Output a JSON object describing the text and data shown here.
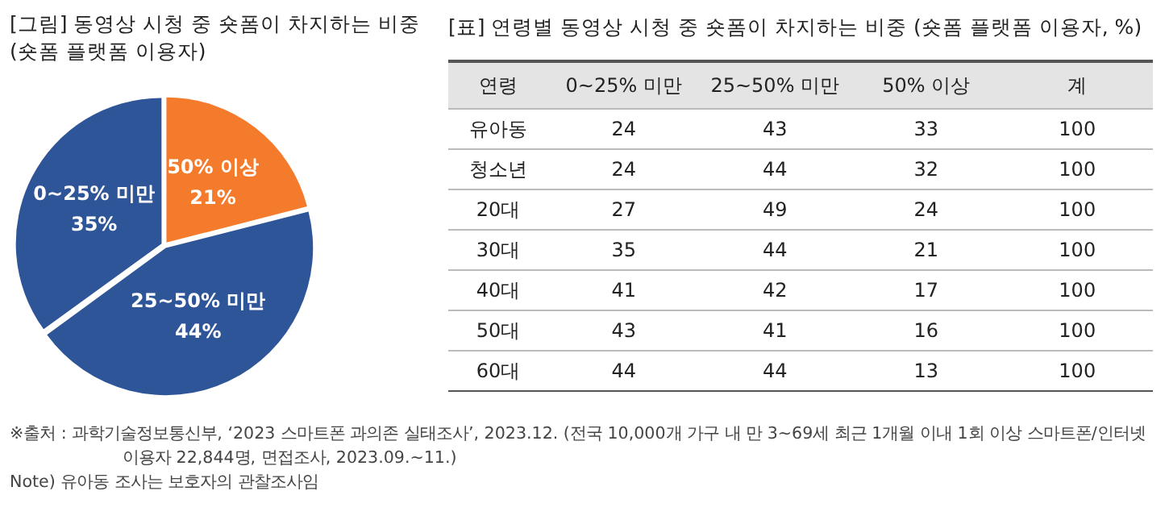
{
  "chart_data": [
    {
      "type": "pie",
      "title": "[그림] 동영상 시청 중 숏폼이 차지하는 비중\n(숏폼 플랫폼 이용자)",
      "categories": [
        "50% 이상",
        "25~50% 미만",
        "0~25% 미만"
      ],
      "values": [
        21,
        44,
        35
      ],
      "colors": [
        "#f47b2b",
        "#2e5597",
        "#2e5597"
      ],
      "value_labels": [
        "21%",
        "44%",
        "35%"
      ],
      "legend": false,
      "annotations": [
        "※출처 : 과학기술정보통신부, ‘2023 스마트폰 과의존 실태조사’, 2023.12. (전국 10,000개 가구 내 만 3~69세 최근 1개월 이내 1회 이상 스마트폰/인터넷 이용자 22,844명, 면접조사, 2023.09.~11.)",
        "Note) 유아동 조사는 보호자의 관찰조사임"
      ]
    },
    {
      "type": "heatmap",
      "title": "[표] 연령별 동영상 시청 중 숏폼이 차지하는 비중 (숏폼 플랫폼 이용자, %)",
      "ylabel": "연령",
      "categories": [
        "0~25% 미만",
        "25~50% 미만",
        "50% 이상",
        "계"
      ],
      "y_categories": [
        "유아동",
        "청소년",
        "20대",
        "30대",
        "40대",
        "50대",
        "60대"
      ],
      "cells": [
        [
          24,
          43,
          33,
          100
        ],
        [
          24,
          44,
          32,
          100
        ],
        [
          27,
          49,
          24,
          100
        ],
        [
          35,
          44,
          21,
          100
        ],
        [
          41,
          42,
          17,
          100
        ],
        [
          43,
          41,
          16,
          100
        ],
        [
          44,
          44,
          13,
          100
        ]
      ],
      "data_labels": true
    }
  ]
}
